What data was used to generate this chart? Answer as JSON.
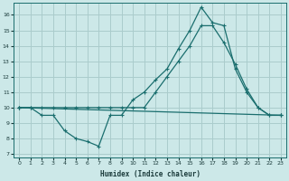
{
  "xlabel": "Humidex (Indice chaleur)",
  "bg_color": "#cce8e8",
  "grid_color": "#aacccc",
  "line_color": "#1a6e6e",
  "xlim": [
    -0.5,
    23.5
  ],
  "ylim": [
    6.8,
    16.8
  ],
  "yticks": [
    7,
    8,
    9,
    10,
    11,
    12,
    13,
    14,
    15,
    16
  ],
  "xticks": [
    0,
    1,
    2,
    3,
    4,
    5,
    6,
    7,
    8,
    9,
    10,
    11,
    12,
    13,
    14,
    15,
    16,
    17,
    18,
    19,
    20,
    21,
    22,
    23
  ],
  "line1_x": [
    0,
    1,
    2,
    3,
    4,
    5,
    6,
    7,
    8,
    9,
    10,
    11,
    12,
    13,
    14,
    15,
    16,
    17,
    18,
    19,
    20,
    21,
    22,
    23
  ],
  "line1_y": [
    10,
    10,
    9.5,
    9.5,
    8.5,
    8.0,
    7.8,
    7.5,
    9.5,
    9.5,
    10.5,
    11.0,
    11.8,
    12.5,
    13.8,
    15.0,
    16.5,
    15.5,
    15.3,
    12.5,
    11.0,
    10.0,
    9.5,
    9.5
  ],
  "line2_x": [
    0,
    1,
    2,
    3,
    4,
    5,
    6,
    7,
    8,
    9,
    10,
    11,
    12,
    13,
    14,
    15,
    16,
    17,
    18,
    19,
    20,
    21,
    22,
    23
  ],
  "line2_y": [
    10,
    10,
    10,
    10,
    10,
    10,
    10,
    10,
    10,
    10,
    10,
    10,
    11.0,
    12.0,
    13.0,
    14.0,
    15.3,
    15.3,
    14.2,
    12.8,
    11.2,
    10.0,
    9.5,
    9.5
  ],
  "line3_x": [
    0,
    23
  ],
  "line3_y": [
    10,
    9.5
  ]
}
